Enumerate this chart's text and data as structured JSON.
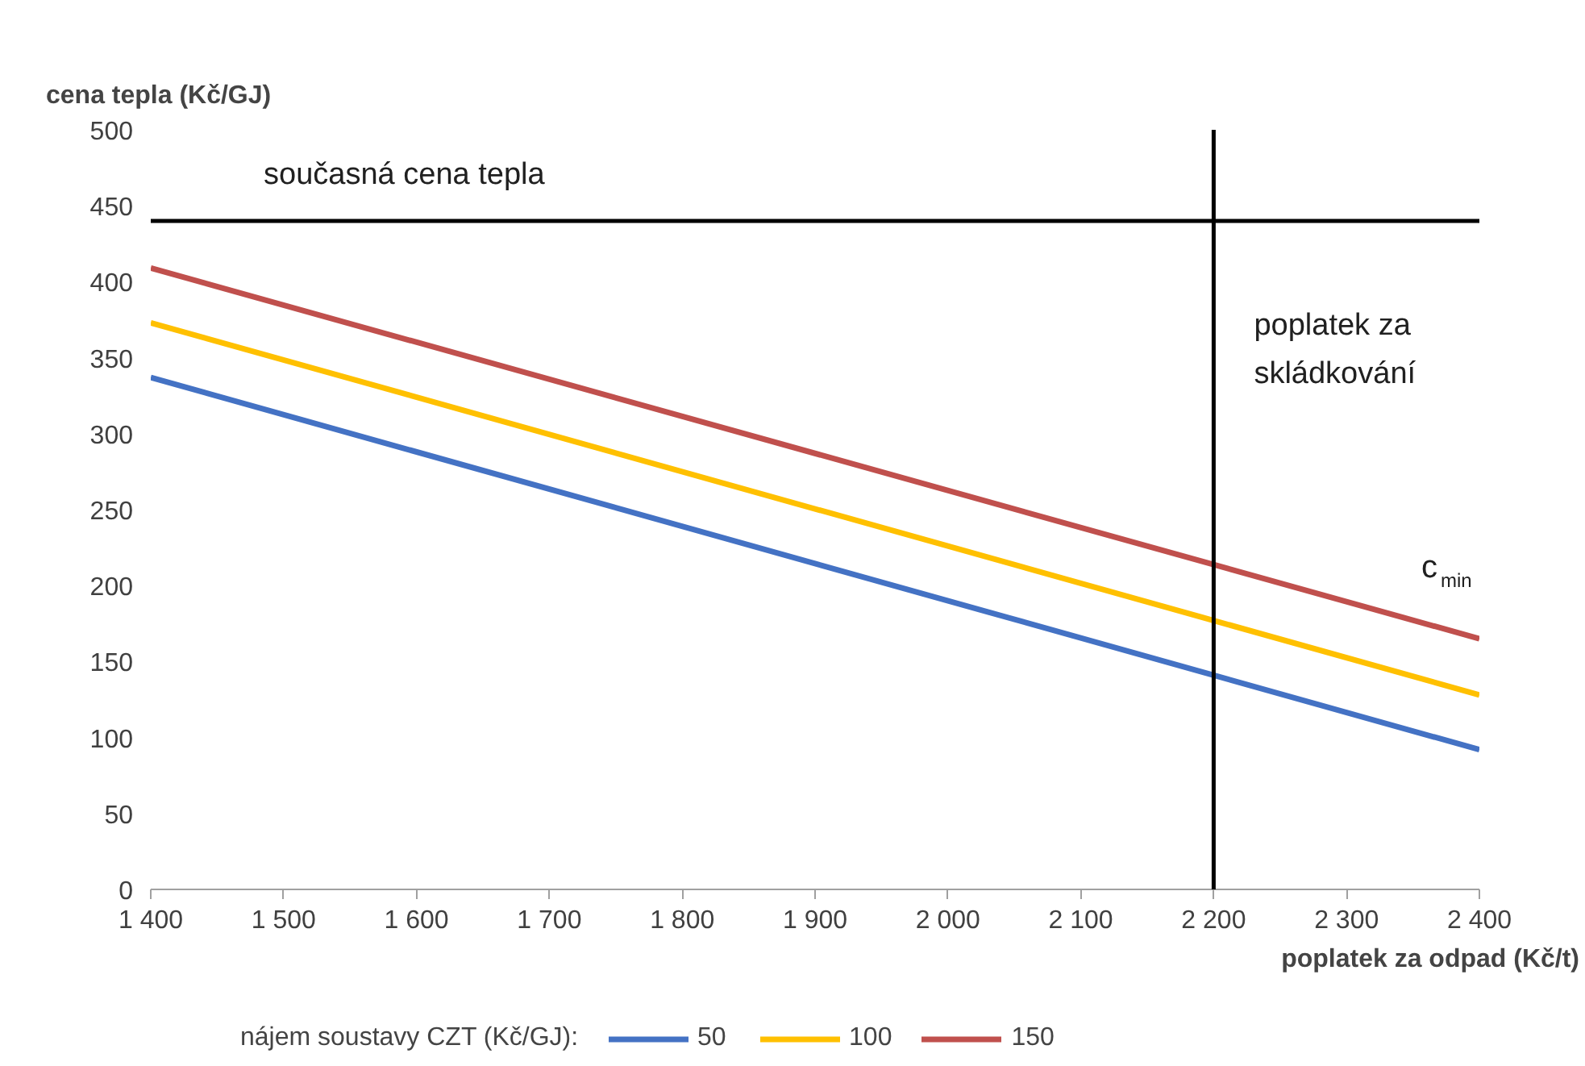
{
  "chart_data": {
    "type": "line",
    "ylabel": "cena tepla (Kč/GJ)",
    "xlabel": "poplatek za odpad (Kč/t)",
    "legend_title": "nájem soustavy CZT (Kč/GJ):",
    "legend": "bottom",
    "grid": false,
    "marker": "none",
    "line_style": "solid",
    "x": [
      1400,
      2400
    ],
    "series": [
      {
        "name": "50",
        "color": "#4472c4",
        "values": [
          337,
          92
        ]
      },
      {
        "name": "100",
        "color": "#ffc000",
        "values": [
          373,
          128
        ]
      },
      {
        "name": "150",
        "color": "#c0504d",
        "values": [
          409,
          165
        ]
      }
    ],
    "xlim": [
      1400,
      2400
    ],
    "ylim": [
      0,
      500
    ],
    "xticks": [
      {
        "value": 1400,
        "label": "1 400"
      },
      {
        "value": 1500,
        "label": "1 500"
      },
      {
        "value": 1600,
        "label": "1 600"
      },
      {
        "value": 1700,
        "label": "1 700"
      },
      {
        "value": 1800,
        "label": "1 800"
      },
      {
        "value": 1900,
        "label": "1 900"
      },
      {
        "value": 2000,
        "label": "2 000"
      },
      {
        "value": 2100,
        "label": "2 100"
      },
      {
        "value": 2200,
        "label": "2 200"
      },
      {
        "value": 2300,
        "label": "2 300"
      },
      {
        "value": 2400,
        "label": "2 400"
      }
    ],
    "yticks": [
      0,
      50,
      100,
      150,
      200,
      250,
      300,
      350,
      400,
      450,
      500
    ],
    "ref_lines": [
      {
        "axis": "y",
        "value": 440,
        "label": "současná cena tepla",
        "color": "#000000"
      },
      {
        "axis": "x",
        "value": 2200,
        "label": "poplatek za skládkování",
        "color": "#000000"
      }
    ],
    "annotations": [
      "c$_{min}$"
    ]
  }
}
